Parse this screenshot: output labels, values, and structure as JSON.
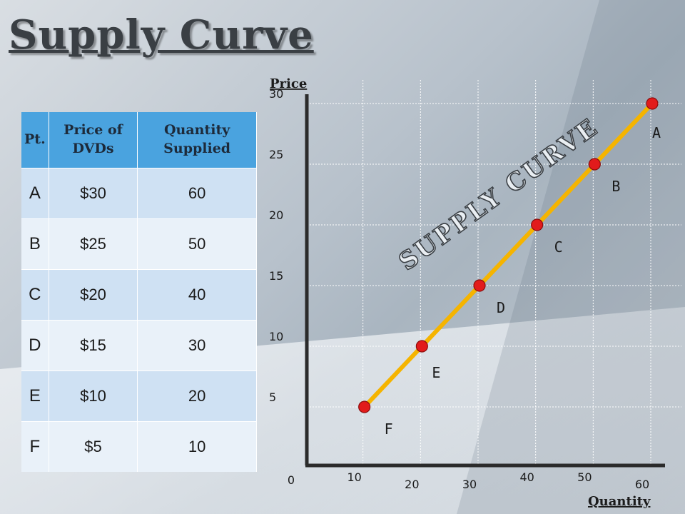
{
  "title": "Supply Curve",
  "table": {
    "headers": [
      "Pt.",
      "Price of DVDs",
      "Quantity Supplied"
    ],
    "rows": [
      {
        "pt": "A",
        "price": "$30",
        "qty": "60"
      },
      {
        "pt": "B",
        "price": "$25",
        "qty": "50"
      },
      {
        "pt": "C",
        "price": "$20",
        "qty": "40"
      },
      {
        "pt": "D",
        "price": "$15",
        "qty": "30"
      },
      {
        "pt": "E",
        "price": "$10",
        "qty": "20"
      },
      {
        "pt": "F",
        "price": "$5",
        "qty": "10"
      }
    ]
  },
  "chart_data": {
    "type": "line",
    "title": "",
    "xlabel": "Quantity",
    "ylabel": "Price",
    "xlim": [
      0,
      60
    ],
    "ylim": [
      0,
      30
    ],
    "x_ticks": [
      "0",
      "10",
      "20",
      "30",
      "40",
      "50",
      "60"
    ],
    "y_ticks": [
      "5",
      "10",
      "15",
      "20",
      "25",
      "30"
    ],
    "grid": true,
    "curve_label": "SUPPLY CURVE",
    "line_color": "#f5b400",
    "point_color": "#e21b1b",
    "points": [
      {
        "label": "A",
        "x": 60,
        "y": 30
      },
      {
        "label": "B",
        "x": 50,
        "y": 25
      },
      {
        "label": "C",
        "x": 40,
        "y": 20
      },
      {
        "label": "D",
        "x": 30,
        "y": 15
      },
      {
        "label": "E",
        "x": 20,
        "y": 10
      },
      {
        "label": "F",
        "x": 10,
        "y": 5
      }
    ]
  }
}
